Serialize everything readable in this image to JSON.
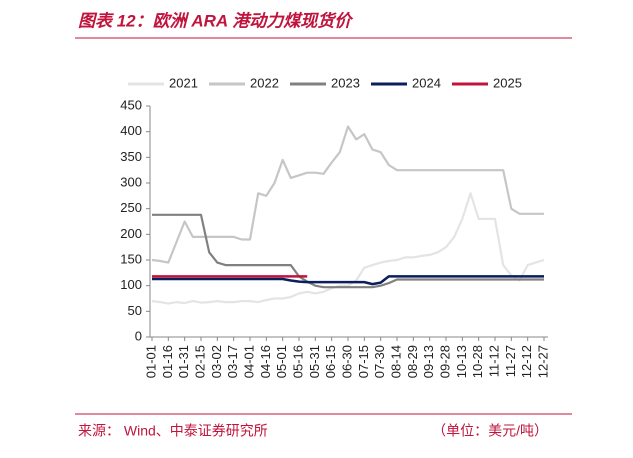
{
  "chart_data": {
    "type": "line",
    "title": "图表 12：欧洲 ARA 港动力煤现货价",
    "source": "来源：  Wind、中泰证券研究所",
    "unit": "（单位：美元/吨）",
    "categories": [
      "01-01",
      null,
      "01-16",
      null,
      "01-31",
      null,
      "02-15",
      null,
      "03-02",
      null,
      "03-17",
      null,
      "04-01",
      null,
      "04-16",
      null,
      "05-01",
      null,
      "05-16",
      null,
      "05-31",
      null,
      "06-15",
      null,
      "06-30",
      null,
      "07-15",
      null,
      "07-30",
      null,
      "08-14",
      null,
      "08-29",
      null,
      "09-13",
      null,
      "09-28",
      null,
      "10-13",
      null,
      "10-28",
      null,
      "11-12",
      null,
      "11-27",
      null,
      "12-12",
      null,
      "12-27"
    ],
    "series": [
      {
        "name": "2021",
        "color": "#e4e4e4",
        "values": [
          70,
          68,
          65,
          68,
          66,
          70,
          67,
          68,
          70,
          68,
          68,
          70,
          70,
          68,
          72,
          75,
          75,
          78,
          85,
          88,
          85,
          88,
          95,
          100,
          100,
          110,
          135,
          140,
          145,
          148,
          150,
          155,
          155,
          158,
          160,
          165,
          175,
          195,
          230,
          280,
          230,
          230,
          230,
          140,
          120,
          110,
          140,
          145,
          150
        ]
      },
      {
        "name": "2022",
        "color": "#c6c6c6",
        "values": [
          150,
          148,
          145,
          185,
          225,
          195,
          195,
          195,
          195,
          195,
          195,
          190,
          190,
          280,
          275,
          300,
          345,
          310,
          315,
          320,
          320,
          318,
          340,
          360,
          410,
          385,
          395,
          365,
          360,
          335,
          325,
          325,
          325,
          325,
          325,
          325,
          325,
          325,
          325,
          325,
          325,
          325,
          325,
          325,
          250,
          240,
          240,
          240,
          240
        ]
      },
      {
        "name": "2023",
        "color": "#808080",
        "values": [
          238,
          238,
          238,
          238,
          238,
          238,
          238,
          165,
          145,
          140,
          140,
          140,
          140,
          140,
          140,
          140,
          140,
          140,
          118,
          108,
          100,
          97,
          97,
          97,
          97,
          97,
          97,
          97,
          100,
          105,
          112,
          112,
          112,
          112,
          112,
          112,
          112,
          112,
          112,
          112,
          112,
          112,
          112,
          112,
          112,
          112,
          112,
          112,
          112
        ]
      },
      {
        "name": "2024",
        "color": "#0b1f5c",
        "values": [
          113,
          113,
          113,
          113,
          113,
          113,
          113,
          113,
          113,
          113,
          113,
          113,
          113,
          113,
          113,
          113,
          113,
          110,
          108,
          107,
          107,
          107,
          107,
          107,
          107,
          107,
          107,
          103,
          106,
          118,
          118,
          118,
          118,
          118,
          118,
          118,
          118,
          118,
          118,
          118,
          118,
          118,
          118,
          118,
          118,
          118,
          118,
          118,
          118
        ]
      },
      {
        "name": "2025",
        "color": "#c0143c",
        "values": [
          118,
          118,
          118,
          118,
          118,
          118,
          118,
          118,
          118,
          118,
          118,
          118,
          118,
          118,
          118,
          118,
          118,
          118,
          118,
          118,
          null,
          null,
          null,
          null,
          null,
          null,
          null,
          null,
          null,
          null,
          null,
          null,
          null,
          null,
          null,
          null,
          null,
          null,
          null,
          null,
          null,
          null,
          null,
          null,
          null,
          null,
          null,
          null,
          null
        ]
      }
    ],
    "ylim": [
      0,
      450
    ],
    "yticks": [
      0,
      50,
      100,
      150,
      200,
      250,
      300,
      350,
      400,
      450
    ]
  }
}
